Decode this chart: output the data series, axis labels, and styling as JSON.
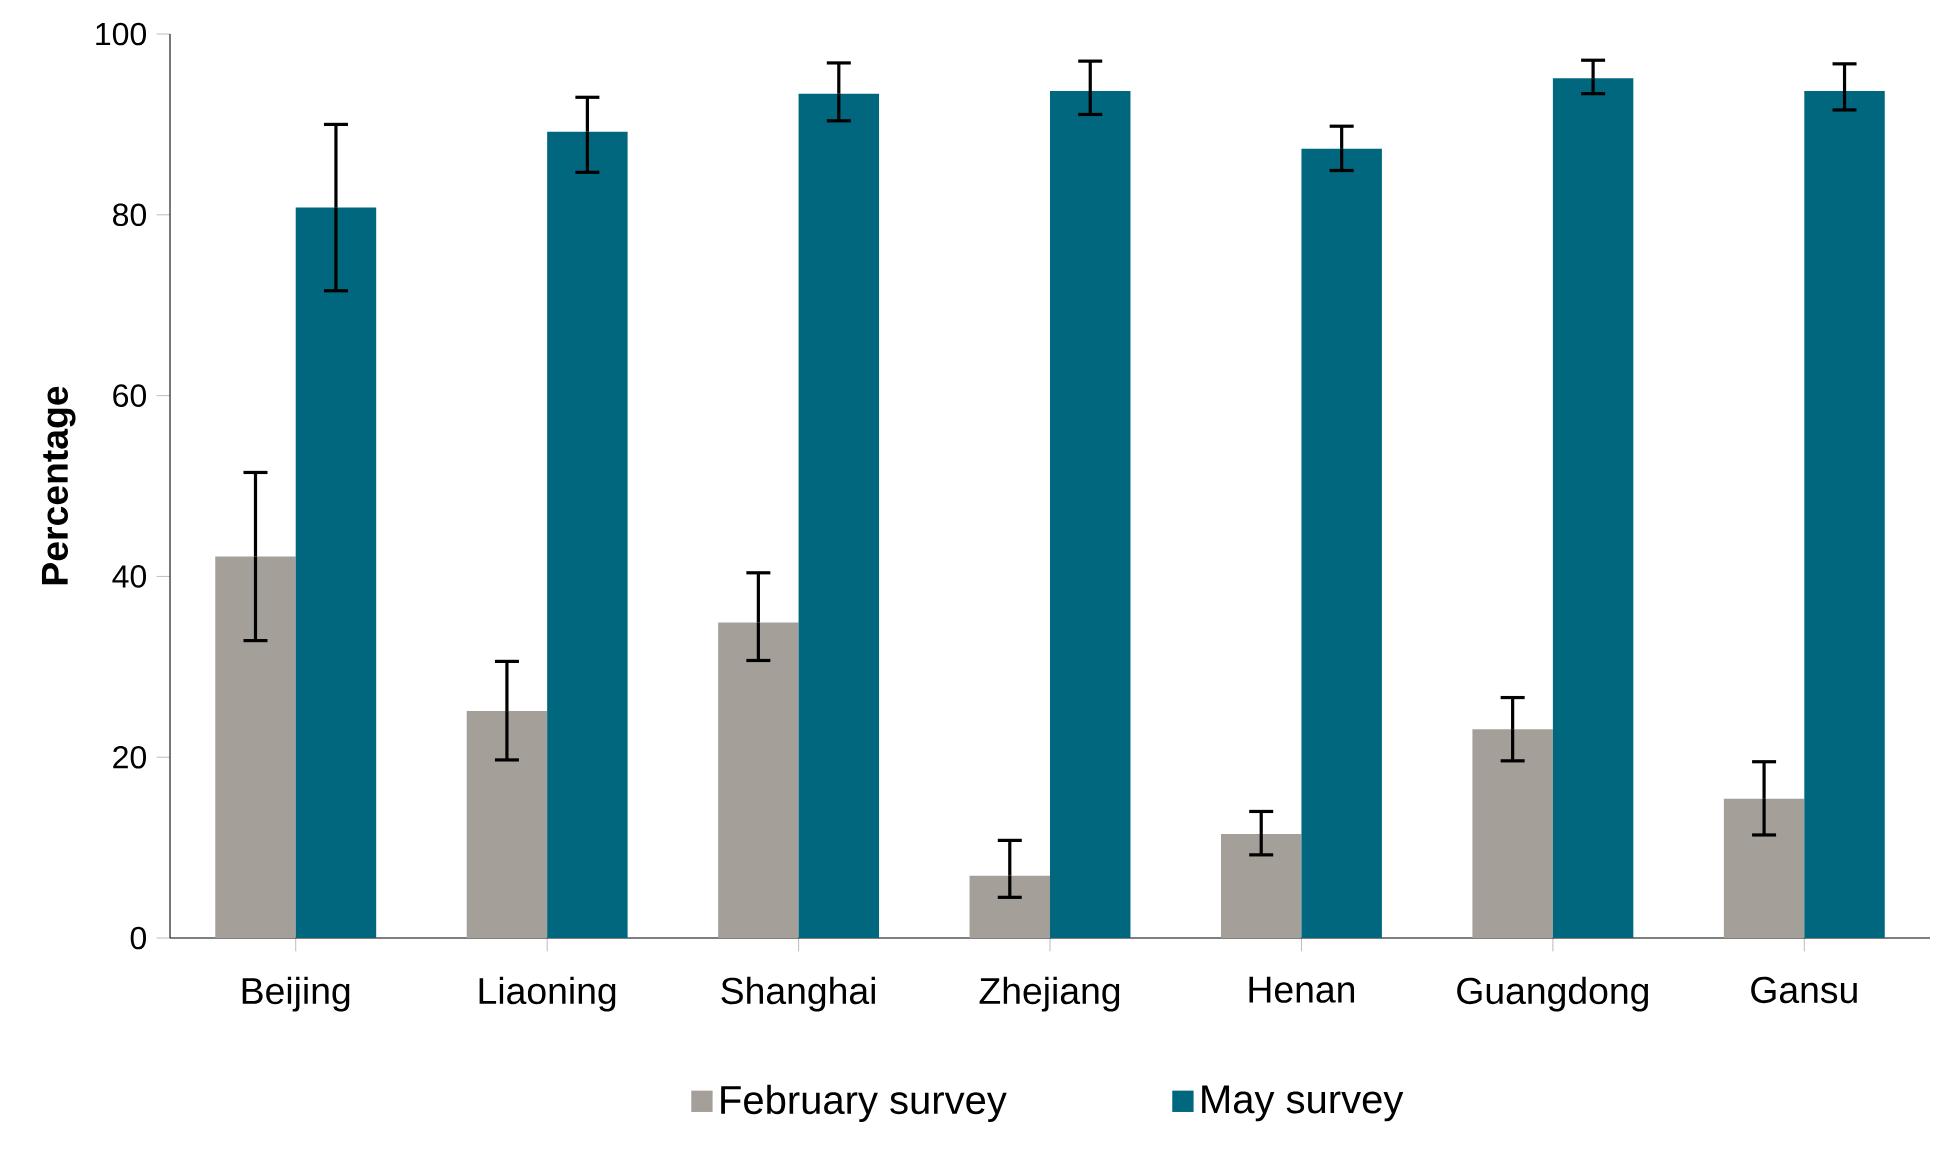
{
  "chart_data": {
    "type": "bar",
    "ylabel": "Percentage",
    "categories": [
      "Beijing",
      "Liaoning",
      "Shanghai",
      "Zhejiang",
      "Henan",
      "Guangdong",
      "Gansu"
    ],
    "series": [
      {
        "name": "February survey",
        "color": "#a59f99",
        "values": [
          42.2,
          25.1,
          34.9,
          6.9,
          11.5,
          23.1,
          15.4
        ],
        "errors": [
          [
            32.9,
            51.5
          ],
          [
            19.7,
            30.6
          ],
          [
            30.7,
            40.4
          ],
          [
            4.5,
            10.8
          ],
          [
            9.2,
            14.0
          ],
          [
            19.6,
            26.6
          ],
          [
            11.4,
            19.5
          ]
        ]
      },
      {
        "name": "May survey",
        "color": "#00677e",
        "values": [
          80.8,
          89.2,
          93.4,
          93.7,
          87.3,
          95.1,
          93.7
        ],
        "errors": [
          [
            71.6,
            90.0
          ],
          [
            84.7,
            93.0
          ],
          [
            90.4,
            96.8
          ],
          [
            91.1,
            97.0
          ],
          [
            84.9,
            89.8
          ],
          [
            93.4,
            97.1
          ],
          [
            91.6,
            96.7
          ]
        ]
      }
    ],
    "ylim": [
      0,
      100
    ],
    "yticks": [
      0,
      20,
      40,
      60,
      80,
      100
    ],
    "legend": "bottom"
  }
}
